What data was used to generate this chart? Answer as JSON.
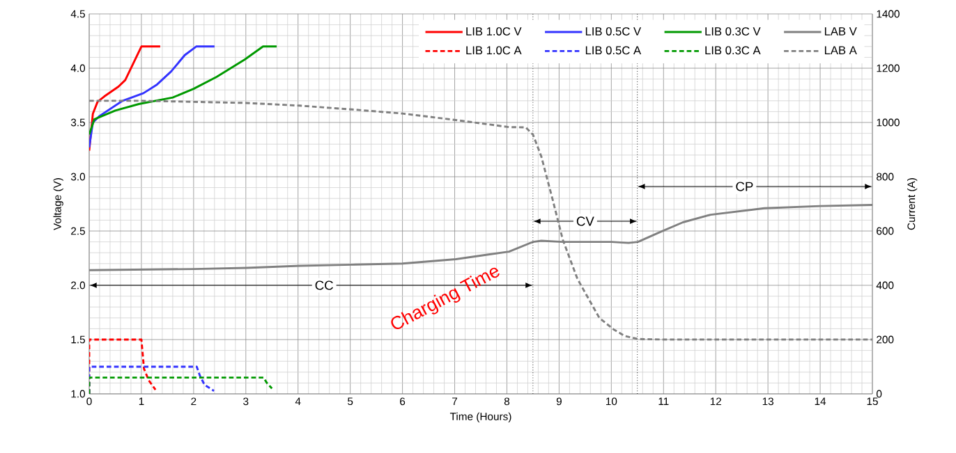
{
  "chart_data": {
    "type": "line",
    "xlabel": "Time  (Hours)",
    "ylabel": "Voltage (V)",
    "y2label": "Current (A)",
    "xlim": [
      0,
      15
    ],
    "xticks": [
      0,
      1,
      2,
      3,
      4,
      5,
      6,
      7,
      8,
      9,
      10,
      11,
      12,
      13,
      14,
      15
    ],
    "ylim": [
      1,
      4.5
    ],
    "yticks": [
      {
        "value": 1,
        "label": "1.0"
      },
      {
        "value": 1.5,
        "label": "1.5"
      },
      {
        "value": 2,
        "label": "2.0"
      },
      {
        "value": 2.5,
        "label": "2.5"
      },
      {
        "value": 3,
        "label": "3.0"
      },
      {
        "value": 3.5,
        "label": "3.5"
      },
      {
        "value": 4,
        "label": "4.0"
      },
      {
        "value": 4.5,
        "label": "4.5"
      }
    ],
    "y2lim": [
      0,
      1400
    ],
    "y2ticks": [
      0,
      200,
      400,
      600,
      800,
      1000,
      1200,
      1400
    ],
    "grid": true,
    "legend": "top right",
    "series": [
      {
        "name": "LIB 1.0C V",
        "color": "#ff0000",
        "line_style": "solid",
        "x": [
          0,
          0.07,
          0.16,
          0.29,
          0.56,
          0.69,
          0.83,
          1.0,
          1.36
        ],
        "values": [
          3.24,
          3.58,
          3.69,
          3.74,
          3.83,
          3.89,
          4.03,
          4.2,
          4.2
        ]
      },
      {
        "name": "LIB 0.5C V",
        "color": "#3333ff",
        "line_style": "solid",
        "x": [
          0,
          0.07,
          0.2,
          0.64,
          1.04,
          1.3,
          1.57,
          1.83,
          2.05,
          2.4
        ],
        "values": [
          3.27,
          3.5,
          3.56,
          3.7,
          3.77,
          3.85,
          3.97,
          4.12,
          4.2,
          4.2
        ]
      },
      {
        "name": "LIB 0.3C V",
        "color": "#009900",
        "line_style": "solid",
        "x": [
          0,
          0.1,
          0.5,
          0.95,
          1.6,
          2.0,
          2.44,
          2.98,
          3.33,
          3.59
        ],
        "values": [
          3.39,
          3.53,
          3.61,
          3.67,
          3.73,
          3.81,
          3.92,
          4.08,
          4.2,
          4.2
        ]
      },
      {
        "name": "LAB V",
        "color": "#808080",
        "line_style": "solid",
        "x": [
          0,
          2,
          3,
          4.03,
          5.03,
          6,
          7.02,
          7.6,
          8.04,
          8.5,
          8.66,
          9.07,
          10.0,
          10.33,
          10.51,
          10.93,
          11.37,
          11.9,
          12.93,
          14.0,
          15
        ],
        "values": [
          2.14,
          2.15,
          2.16,
          2.18,
          2.19,
          2.2,
          2.24,
          2.28,
          2.31,
          2.4,
          2.41,
          2.4,
          2.4,
          2.39,
          2.4,
          2.49,
          2.58,
          2.65,
          2.71,
          2.73,
          2.74
        ]
      },
      {
        "name": "LIB 1.0C A",
        "color": "#ff0000",
        "line_style": "dashed",
        "axis": "y2",
        "x": [
          0,
          0,
          1.0,
          1.05,
          1.14,
          1.27
        ],
        "values": [
          0,
          200,
          200,
          92,
          50,
          15
        ]
      },
      {
        "name": "LIB 0.5C A",
        "color": "#3333ff",
        "line_style": "dashed",
        "axis": "y2",
        "x": [
          0,
          0,
          2.06,
          2.12,
          2.21,
          2.39
        ],
        "values": [
          0,
          100,
          100,
          67,
          33,
          11
        ]
      },
      {
        "name": "LIB 0.3C A",
        "color": "#009900",
        "line_style": "dashed",
        "axis": "y2",
        "x": [
          0,
          0,
          3.34,
          3.4,
          3.5
        ],
        "values": [
          0,
          60,
          60,
          41,
          20
        ]
      },
      {
        "name": "LAB A",
        "color": "#808080",
        "line_style": "dashed",
        "axis": "y2",
        "x": [
          0,
          1,
          3,
          4.03,
          5.03,
          6.0,
          7.02,
          8.04,
          8.36,
          8.5,
          8.66,
          8.88,
          9.07,
          9.35,
          9.77,
          10.04,
          10.26,
          10.51,
          11,
          15
        ],
        "values": [
          1080,
          1080,
          1072,
          1062,
          1048,
          1033,
          1009,
          983,
          982,
          955,
          874,
          713,
          568,
          424,
          280,
          238,
          213,
          202,
          200,
          200
        ]
      }
    ],
    "ref_lines": [
      {
        "axis": "x",
        "value": 8.5,
        "line_style": "dotted",
        "color": "#000000"
      },
      {
        "axis": "x",
        "value": 10.5,
        "line_style": "dotted",
        "color": "#000000"
      }
    ],
    "annotations": [
      {
        "text": "CC",
        "x": 4.5,
        "y": 2.0
      },
      {
        "text": "CV",
        "x": 9.5,
        "y": 2.59
      },
      {
        "text": "CP",
        "x": 12.55,
        "y": 2.91
      },
      "Charging Time"
    ]
  }
}
